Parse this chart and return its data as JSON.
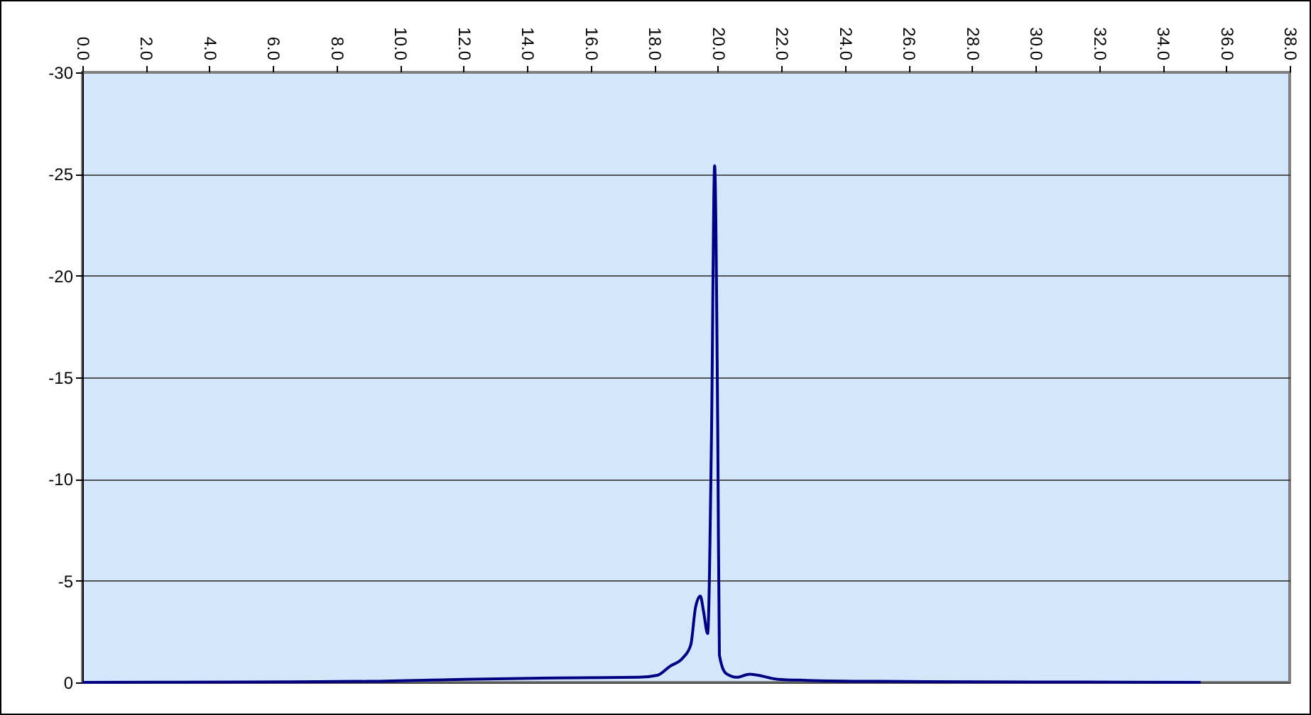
{
  "chart_data": {
    "type": "line",
    "x": [
      0,
      5,
      9,
      12,
      15,
      17.5,
      18.1,
      18.5,
      18.9,
      19.15,
      19.3,
      19.45,
      19.55,
      19.68,
      19.8,
      19.9,
      20.0,
      20.05,
      20.25,
      20.6,
      21.0,
      21.9,
      22.8,
      25,
      30,
      35.2
    ],
    "series": [
      {
        "color": "#000080",
        "values": [
          0,
          -0.02,
          -0.05,
          -0.15,
          -0.22,
          -0.25,
          -0.35,
          -0.8,
          -1.2,
          -1.85,
          -3.7,
          -4.25,
          -3.5,
          -2.4,
          -12,
          -25.4,
          -12,
          -1.35,
          -0.45,
          -0.25,
          -0.4,
          -0.15,
          -0.1,
          -0.05,
          -0.02,
          0
        ]
      }
    ],
    "xlim": [
      0,
      38
    ],
    "xticks": [
      {
        "value": 0,
        "label": "0.0"
      },
      {
        "value": 2,
        "label": "2.0"
      },
      {
        "value": 4,
        "label": "4.0"
      },
      {
        "value": 6,
        "label": "6.0"
      },
      {
        "value": 8,
        "label": "8.0"
      },
      {
        "value": 10,
        "label": "10.0"
      },
      {
        "value": 12,
        "label": "12.0"
      },
      {
        "value": 14,
        "label": "14.0"
      },
      {
        "value": 16,
        "label": "16.0"
      },
      {
        "value": 18,
        "label": "18.0"
      },
      {
        "value": 20,
        "label": "20.0"
      },
      {
        "value": 22,
        "label": "22.0"
      },
      {
        "value": 24,
        "label": "24.0"
      },
      {
        "value": 26,
        "label": "26.0"
      },
      {
        "value": 28,
        "label": "28.0"
      },
      {
        "value": 30,
        "label": "30.0"
      },
      {
        "value": 32,
        "label": "32.0"
      },
      {
        "value": 34,
        "label": "34.0"
      },
      {
        "value": 36,
        "label": "36.0"
      },
      {
        "value": 38,
        "label": "38.0"
      }
    ],
    "ylim": [
      0,
      -30
    ],
    "yticks": [
      0,
      -5,
      -10,
      -15,
      -20,
      -25,
      -30
    ],
    "grid": "y",
    "marker": "none",
    "line_style": "solid"
  }
}
